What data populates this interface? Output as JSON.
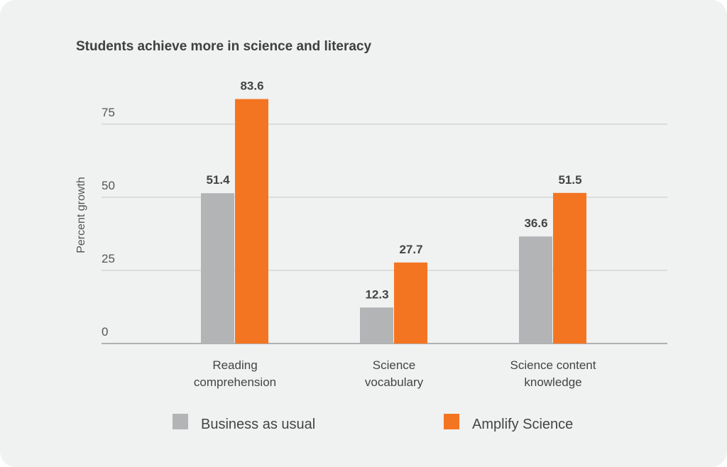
{
  "chart_data": {
    "type": "bar",
    "title": "Students achieve more in science and literacy",
    "xlabel": "",
    "ylabel": "Percent growth",
    "ylim": [
      0,
      75
    ],
    "yticks": [
      "0",
      "25",
      "50",
      "75"
    ],
    "grid": true,
    "legend_placement": "bottom",
    "categories": [
      [
        "Reading",
        "comprehension"
      ],
      [
        "Science",
        "vocabulary"
      ],
      [
        "Science content",
        "knowledge"
      ]
    ],
    "series": [
      {
        "name": "Business as usual",
        "color": "#b3b4b5",
        "values": [
          51.4,
          12.3,
          36.6
        ],
        "labels": [
          "51.4",
          "12.3",
          "36.6"
        ]
      },
      {
        "name": "Amplify Science",
        "color": "#f47521",
        "values": [
          83.6,
          27.7,
          51.5
        ],
        "labels": [
          "83.6",
          "27.7",
          "51.5"
        ]
      }
    ]
  }
}
